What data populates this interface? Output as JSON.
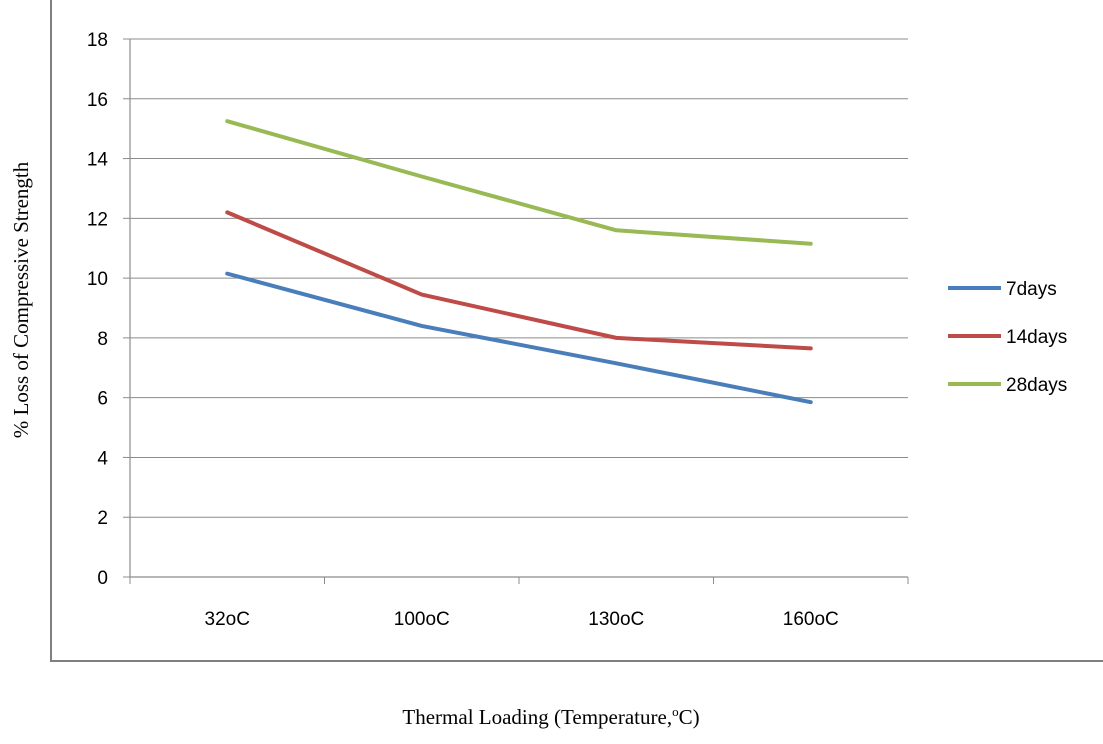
{
  "chart_data": {
    "type": "line",
    "categories": [
      "32oC",
      "100oC",
      "130oC",
      "160oC"
    ],
    "series": [
      {
        "name": "7days",
        "values": [
          10.15,
          8.4,
          7.15,
          5.85
        ],
        "color": "#4a7ebb"
      },
      {
        "name": "14days",
        "values": [
          12.2,
          9.45,
          8.0,
          7.65
        ],
        "color": "#be4b48"
      },
      {
        "name": "28days",
        "values": [
          15.25,
          13.4,
          11.6,
          11.15
        ],
        "color": "#98b954"
      }
    ],
    "ylabel": "% Loss of Compressive Strength",
    "xlabel_main": "Thermal Loading (Temperature,",
    "xlabel_sup": "o",
    "xlabel_end": "C)",
    "ylim": [
      0,
      18
    ],
    "yticks": [
      0,
      2,
      4,
      6,
      8,
      10,
      12,
      14,
      16,
      18
    ],
    "grid": true,
    "legend_position": "right"
  }
}
